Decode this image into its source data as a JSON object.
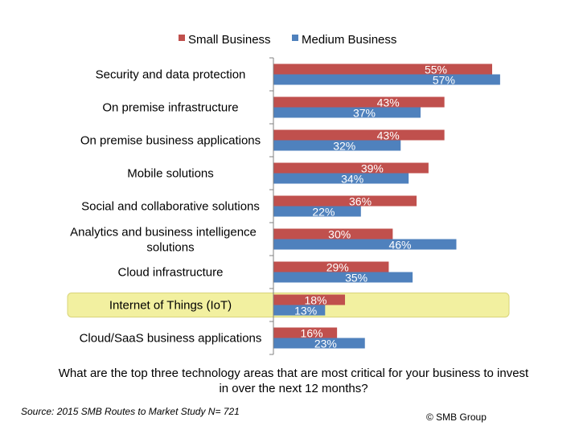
{
  "chart_data": {
    "type": "bar",
    "orientation": "horizontal",
    "categories": [
      "Security and data protection",
      "On premise infrastructure",
      "On premise business applications",
      "Mobile solutions",
      "Social and collaborative solutions",
      "Analytics and business intelligence solutions",
      "Cloud infrastructure",
      "Internet of Things (IoT)",
      "Cloud/SaaS business applications"
    ],
    "series": [
      {
        "name": "Small Business",
        "values": [
          55,
          43,
          43,
          39,
          36,
          30,
          29,
          18,
          16
        ],
        "color": "#c0504d"
      },
      {
        "name": "Medium Business",
        "values": [
          57,
          37,
          32,
          34,
          22,
          46,
          35,
          13,
          23
        ],
        "color": "#4f81bd"
      }
    ],
    "value_suffix": "%",
    "xlim": [
      0,
      60
    ],
    "highlight_category": "Internet of Things (IoT)",
    "highlight_color": "#f2f0a0",
    "legend_position": "top",
    "grid": false
  },
  "question": "What are the top three technology areas that are most critical for your business to invest in over the next 12 months?",
  "source": "Source: 2015 SMB Routes to Market Study N= 721",
  "copyright": "© SMB Group"
}
